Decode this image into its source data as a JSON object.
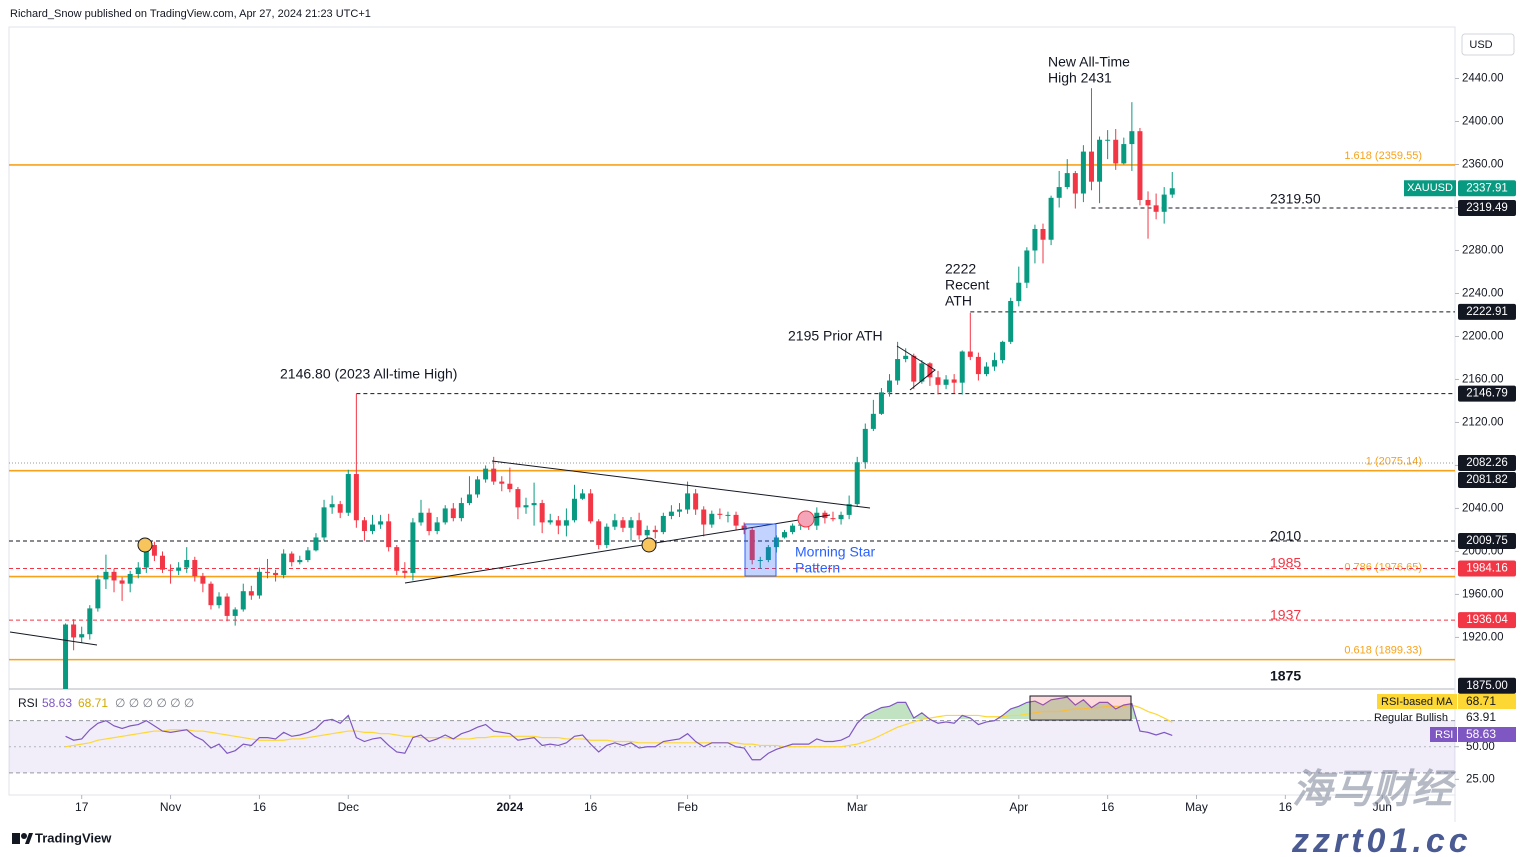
{
  "header": {
    "byline": "Richard_Snow published on TradingView.com, Apr 27, 2024 21:23 UTC+1",
    "currency": "USD",
    "logo": "TradingView",
    "watermark_cn": "海马财经",
    "watermark_url": "zzrt01.cc"
  },
  "chart_data": {
    "type": "candlestick",
    "symbol": "XAUUSD",
    "up_color": "#089981",
    "down_color": "#f23645",
    "ylim": [
      1872,
      2487
    ],
    "yticks": [
      {
        "value": 1920,
        "label": "1920.00"
      },
      {
        "value": 1960,
        "label": "1960.00"
      },
      {
        "value": 2000,
        "label": "2000.00"
      },
      {
        "value": 2040,
        "label": "2040.00"
      },
      {
        "value": 2080,
        "label": "2080.00"
      },
      {
        "value": 2120,
        "label": "2120.00"
      },
      {
        "value": 2160,
        "label": "2160.00"
      },
      {
        "value": 2200,
        "label": "2200.00"
      },
      {
        "value": 2240,
        "label": "2240.00"
      },
      {
        "value": 2280,
        "label": "2280.00"
      },
      {
        "value": 2320,
        "label": "2320.00"
      },
      {
        "value": 2360,
        "label": "2360.00"
      },
      {
        "value": 2400,
        "label": "2400.00"
      },
      {
        "value": 2440,
        "label": "2440.00"
      }
    ],
    "xlim": [
      -7,
      172
    ],
    "xticks": [
      {
        "value": 2,
        "label": "17"
      },
      {
        "value": 13,
        "label": "Nov"
      },
      {
        "value": 24,
        "label": "16"
      },
      {
        "value": 35,
        "label": "Dec"
      },
      {
        "value": 55,
        "label": "2024",
        "bold": true
      },
      {
        "value": 65,
        "label": "16"
      },
      {
        "value": 77,
        "label": "Feb"
      },
      {
        "value": 98,
        "label": "Mar"
      },
      {
        "value": 118,
        "label": "Apr"
      },
      {
        "value": 129,
        "label": "16"
      },
      {
        "value": 140,
        "label": "May"
      },
      {
        "value": 151,
        "label": "16"
      },
      {
        "value": 163,
        "label": "Jun"
      }
    ],
    "ohlc": [
      [
        1868,
        1933,
        1866,
        1932
      ],
      [
        1932,
        1937,
        1908,
        1920
      ],
      [
        1920,
        1930,
        1915,
        1923
      ],
      [
        1923,
        1950,
        1918,
        1947
      ],
      [
        1947,
        1978,
        1944,
        1974
      ],
      [
        1974,
        1997,
        1965,
        1981
      ],
      [
        1981,
        1984,
        1962,
        1973
      ],
      [
        1973,
        1976,
        1954,
        1970
      ],
      [
        1970,
        1982,
        1962,
        1979
      ],
      [
        1979,
        1990,
        1975,
        1985
      ],
      [
        1985,
        2010,
        1980,
        2006
      ],
      [
        2006,
        2009,
        1991,
        1996
      ],
      [
        1996,
        2000,
        1980,
        1983
      ],
      [
        1983,
        1988,
        1970,
        1982
      ],
      [
        1982,
        1990,
        1978,
        1985
      ],
      [
        1985,
        2004,
        1980,
        1992
      ],
      [
        1992,
        1995,
        1972,
        1977
      ],
      [
        1977,
        1980,
        1962,
        1970
      ],
      [
        1970,
        1972,
        1946,
        1950
      ],
      [
        1950,
        1962,
        1947,
        1958
      ],
      [
        1958,
        1961,
        1935,
        1940
      ],
      [
        1940,
        1948,
        1931,
        1946
      ],
      [
        1946,
        1970,
        1944,
        1963
      ],
      [
        1963,
        1968,
        1955,
        1959
      ],
      [
        1959,
        1985,
        1956,
        1981
      ],
      [
        1981,
        1993,
        1975,
        1980
      ],
      [
        1980,
        1983,
        1972,
        1978
      ],
      [
        1978,
        2002,
        1975,
        1998
      ],
      [
        1998,
        2000,
        1986,
        1990
      ],
      [
        1990,
        1996,
        1988,
        1992
      ],
      [
        1992,
        2004,
        1990,
        2001
      ],
      [
        2001,
        2017,
        2000,
        2013
      ],
      [
        2013,
        2048,
        2010,
        2041
      ],
      [
        2041,
        2052,
        2035,
        2044
      ],
      [
        2044,
        2047,
        2031,
        2036
      ],
      [
        2036,
        2076,
        2033,
        2072
      ],
      [
        2072,
        2146.8,
        2022,
        2029
      ],
      [
        2029,
        2032,
        2010,
        2019
      ],
      [
        2019,
        2034,
        2016,
        2025
      ],
      [
        2025,
        2034,
        2021,
        2028
      ],
      [
        2028,
        2035,
        2000,
        2004
      ],
      [
        2004,
        2006,
        1978,
        1982
      ],
      [
        1982,
        1990,
        1975,
        1980
      ],
      [
        1980,
        2031,
        1973,
        2027
      ],
      [
        2027,
        2048,
        2024,
        2036
      ],
      [
        2036,
        2040,
        2015,
        2019
      ],
      [
        2019,
        2032,
        2016,
        2027
      ],
      [
        2027,
        2043,
        2025,
        2040
      ],
      [
        2040,
        2045,
        2028,
        2031
      ],
      [
        2031,
        2050,
        2028,
        2045
      ],
      [
        2045,
        2070,
        2043,
        2053
      ],
      [
        2053,
        2070,
        2050,
        2067
      ],
      [
        2067,
        2080,
        2064,
        2077
      ],
      [
        2077,
        2088,
        2062,
        2065
      ],
      [
        2065,
        2070,
        2056,
        2063
      ],
      [
        2063,
        2078,
        2055,
        2058
      ],
      [
        2058,
        2060,
        2030,
        2041
      ],
      [
        2041,
        2050,
        2035,
        2043
      ],
      [
        2043,
        2064,
        2024,
        2045
      ],
      [
        2045,
        2048,
        2017,
        2027
      ],
      [
        2027,
        2035,
        2025,
        2029
      ],
      [
        2029,
        2033,
        2016,
        2024
      ],
      [
        2024,
        2040,
        2014,
        2029
      ],
      [
        2029,
        2062,
        2027,
        2049
      ],
      [
        2049,
        2058,
        2048,
        2054
      ],
      [
        2054,
        2058,
        2026,
        2028
      ],
      [
        2028,
        2030,
        2002,
        2006
      ],
      [
        2006,
        2026,
        2003,
        2023
      ],
      [
        2023,
        2035,
        2020,
        2029
      ],
      [
        2029,
        2032,
        2018,
        2022
      ],
      [
        2022,
        2032,
        2010,
        2029
      ],
      [
        2029,
        2036,
        2011,
        2015
      ],
      [
        2015,
        2024,
        2010,
        2020
      ],
      [
        2020,
        2024,
        2012,
        2018
      ],
      [
        2018,
        2036,
        2016,
        2033
      ],
      [
        2033,
        2043,
        2030,
        2037
      ],
      [
        2037,
        2045,
        2032,
        2039
      ],
      [
        2039,
        2065,
        2035,
        2054
      ],
      [
        2054,
        2058,
        2034,
        2039
      ],
      [
        2039,
        2042,
        2014,
        2025
      ],
      [
        2025,
        2038,
        2022,
        2035
      ],
      [
        2035,
        2040,
        2030,
        2034
      ],
      [
        2034,
        2037,
        2027,
        2034
      ],
      [
        2034,
        2037,
        2020,
        2024
      ],
      [
        2024,
        2027,
        2016,
        2020
      ],
      [
        2020,
        2022,
        1988,
        1992
      ],
      [
        1992,
        1995,
        1984,
        1992
      ],
      [
        1992,
        2006,
        1990,
        2004
      ],
      [
        2004,
        2015,
        1999,
        2013
      ],
      [
        2013,
        2020,
        2012,
        2018
      ],
      [
        2018,
        2026,
        2016,
        2024
      ],
      [
        2024,
        2030,
        2020,
        2025
      ],
      [
        2025,
        2034,
        2020,
        2024
      ],
      [
        2024,
        2041,
        2020,
        2036
      ],
      [
        2036,
        2038,
        2026,
        2031
      ],
      [
        2031,
        2037,
        2028,
        2030
      ],
      [
        2030,
        2037,
        2025,
        2034
      ],
      [
        2034,
        2052,
        2030,
        2044
      ],
      [
        2044,
        2088,
        2042,
        2083
      ],
      [
        2083,
        2119,
        2077,
        2114
      ],
      [
        2114,
        2141,
        2112,
        2128
      ],
      [
        2128,
        2152,
        2127,
        2148
      ],
      [
        2148,
        2165,
        2144,
        2159
      ],
      [
        2159,
        2195,
        2155,
        2179
      ],
      [
        2179,
        2189,
        2176,
        2182
      ],
      [
        2182,
        2184,
        2151,
        2158
      ],
      [
        2158,
        2178,
        2156,
        2175
      ],
      [
        2175,
        2176,
        2154,
        2162
      ],
      [
        2162,
        2168,
        2146,
        2155
      ],
      [
        2155,
        2164,
        2151,
        2160
      ],
      [
        2160,
        2165,
        2147,
        2157
      ],
      [
        2157,
        2187,
        2146,
        2186
      ],
      [
        2186,
        2222,
        2178,
        2181
      ],
      [
        2181,
        2185,
        2159,
        2165
      ],
      [
        2165,
        2176,
        2163,
        2172
      ],
      [
        2172,
        2185,
        2168,
        2178
      ],
      [
        2178,
        2196,
        2175,
        2195
      ],
      [
        2195,
        2236,
        2193,
        2233
      ],
      [
        2233,
        2265,
        2228,
        2250
      ],
      [
        2250,
        2283,
        2245,
        2280
      ],
      [
        2280,
        2304,
        2268,
        2300
      ],
      [
        2300,
        2305,
        2268,
        2290
      ],
      [
        2290,
        2331,
        2285,
        2329
      ],
      [
        2329,
        2354,
        2320,
        2339
      ],
      [
        2339,
        2365,
        2337,
        2352
      ],
      [
        2352,
        2354,
        2319,
        2333
      ],
      [
        2333,
        2378,
        2325,
        2372
      ],
      [
        2372,
        2431,
        2336,
        2344
      ],
      [
        2344,
        2386,
        2324,
        2383
      ],
      [
        2383,
        2392,
        2365,
        2383
      ],
      [
        2383,
        2393,
        2355,
        2361
      ],
      [
        2361,
        2385,
        2360,
        2379
      ],
      [
        2379,
        2418,
        2354,
        2391
      ],
      [
        2391,
        2394,
        2322,
        2327
      ],
      [
        2327,
        2335,
        2291,
        2322
      ],
      [
        2322,
        2333,
        2309,
        2316
      ],
      [
        2316,
        2339,
        2305,
        2332
      ],
      [
        2332,
        2353,
        2329,
        2337.91
      ]
    ],
    "levels": [
      {
        "value": 2359.55,
        "color": "#f7a21b",
        "style": "solid",
        "label": "1.618 (2359.55)"
      },
      {
        "value": 2075.14,
        "color": "#f7a21b",
        "style": "solid",
        "label": "1 (2075.14)"
      },
      {
        "value": 1976.65,
        "color": "#f7a21b",
        "style": "solid",
        "label": "0.786 (1976.65)"
      },
      {
        "value": 1899.33,
        "color": "#f7a21b",
        "style": "solid",
        "label": "0.618 (1899.33)"
      },
      {
        "value": 2319.5,
        "color": "#131722",
        "style": "dashed",
        "from": 127
      },
      {
        "value": 2222.91,
        "color": "#131722",
        "style": "dashed",
        "from": 112
      },
      {
        "value": 2146.79,
        "color": "#131722",
        "style": "dashed",
        "from": 36
      },
      {
        "value": 2009.75,
        "color": "#131722",
        "style": "dashed"
      },
      {
        "value": 1984.16,
        "color": "#f23645",
        "style": "dashed"
      },
      {
        "value": 1936.04,
        "color": "#f23645",
        "style": "dashed"
      },
      {
        "value": 2082.26,
        "color": "#9598a1",
        "style": "dotted"
      }
    ],
    "price_badges": [
      {
        "value": 2337.91,
        "color": "#089981",
        "tag": "XAUUSD"
      },
      {
        "value": 2319.49,
        "color": "#131722"
      },
      {
        "value": 2222.91,
        "color": "#131722"
      },
      {
        "value": 2146.79,
        "color": "#131722"
      },
      {
        "value": 2082.26,
        "color": "#131722"
      },
      {
        "value": 2081.82,
        "color": "#131722"
      },
      {
        "value": 2009.75,
        "color": "#131722"
      },
      {
        "value": 1984.16,
        "color": "#f23645"
      },
      {
        "value": 1936.04,
        "color": "#f23645"
      },
      {
        "value": 1875,
        "label": "1875.00",
        "color": "#131722"
      }
    ],
    "annotations": {
      "ath": [
        "New All-Time",
        "High 2431"
      ],
      "support": "2319.50",
      "recent": [
        "2222",
        "Recent",
        "ATH"
      ],
      "prior": "2195 Prior ATH",
      "high2023": "2146.80 (2023 All-time High)",
      "l2010": "2010",
      "l1985": "1985",
      "l1937": "1937",
      "l1875": "1875",
      "pattern": [
        "Morning Star",
        "Pattern"
      ]
    },
    "rsi": {
      "title": "RSI",
      "ylim": [
        13,
        93.5
      ],
      "band": [
        30,
        70
      ],
      "mid": 50,
      "nulls": "∅ ∅ ∅ ∅ ∅ ∅",
      "yticks": [
        {
          "value": 50,
          "label": "50.00"
        },
        {
          "value": 25,
          "label": "25.00"
        }
      ],
      "divergence": {
        "label": "Regular Bullish",
        "value": 63.91
      },
      "series": [
        {
          "name": "RSI",
          "color": "#7e57c2",
          "values": [
            58,
            55,
            56,
            63,
            68,
            70,
            66,
            64,
            66,
            67,
            70,
            66,
            62,
            61,
            62,
            63,
            58,
            55,
            49,
            52,
            45,
            47,
            52,
            51,
            57,
            57,
            56,
            61,
            58,
            59,
            61,
            64,
            70,
            71,
            68,
            74,
            57,
            54,
            56,
            57,
            51,
            46,
            45,
            57,
            59,
            54,
            56,
            59,
            56,
            60,
            62,
            65,
            67,
            62,
            61,
            60,
            55,
            56,
            57,
            51,
            52,
            51,
            53,
            58,
            59,
            52,
            46,
            51,
            53,
            51,
            53,
            49,
            50,
            50,
            54,
            55,
            56,
            60,
            54,
            50,
            53,
            53,
            53,
            50,
            49,
            40,
            40,
            45,
            48,
            50,
            52,
            52,
            52,
            56,
            54,
            54,
            55,
            58,
            68,
            74,
            77,
            80,
            81,
            84,
            84,
            72,
            76,
            71,
            68,
            69,
            68,
            74,
            72,
            67,
            69,
            70,
            74,
            79,
            81,
            84,
            85,
            82,
            86,
            87,
            88,
            82,
            86,
            80,
            84,
            84,
            79,
            82,
            83,
            62,
            61,
            59,
            61,
            58.63
          ]
        },
        {
          "name": "RSI-based MA",
          "color": "#fdd835",
          "values": [
            50,
            51,
            52,
            53,
            55,
            56,
            57,
            58,
            59,
            60,
            61,
            62,
            62,
            63,
            63,
            63,
            62,
            62,
            61,
            60,
            59,
            58,
            57,
            56,
            55,
            55,
            55,
            55,
            56,
            56,
            57,
            58,
            59,
            60,
            61,
            62,
            62,
            61,
            61,
            60,
            60,
            59,
            58,
            58,
            57,
            57,
            57,
            57,
            56,
            56,
            56,
            57,
            57,
            58,
            58,
            58,
            58,
            58,
            58,
            57,
            57,
            57,
            56,
            56,
            56,
            55,
            55,
            55,
            54,
            54,
            54,
            53,
            53,
            53,
            53,
            53,
            53,
            53,
            53,
            53,
            53,
            53,
            53,
            53,
            52,
            52,
            51,
            51,
            51,
            50,
            50,
            50,
            50,
            50,
            50,
            50,
            50,
            51,
            52,
            54,
            56,
            59,
            62,
            65,
            67,
            69,
            71,
            72,
            73,
            74,
            74,
            74,
            74,
            74,
            73,
            73,
            73,
            74,
            74,
            75,
            76,
            77,
            77,
            77,
            78,
            79,
            79,
            80,
            80,
            81,
            81,
            81,
            82,
            80,
            77,
            75,
            72,
            68.71
          ]
        }
      ]
    }
  }
}
